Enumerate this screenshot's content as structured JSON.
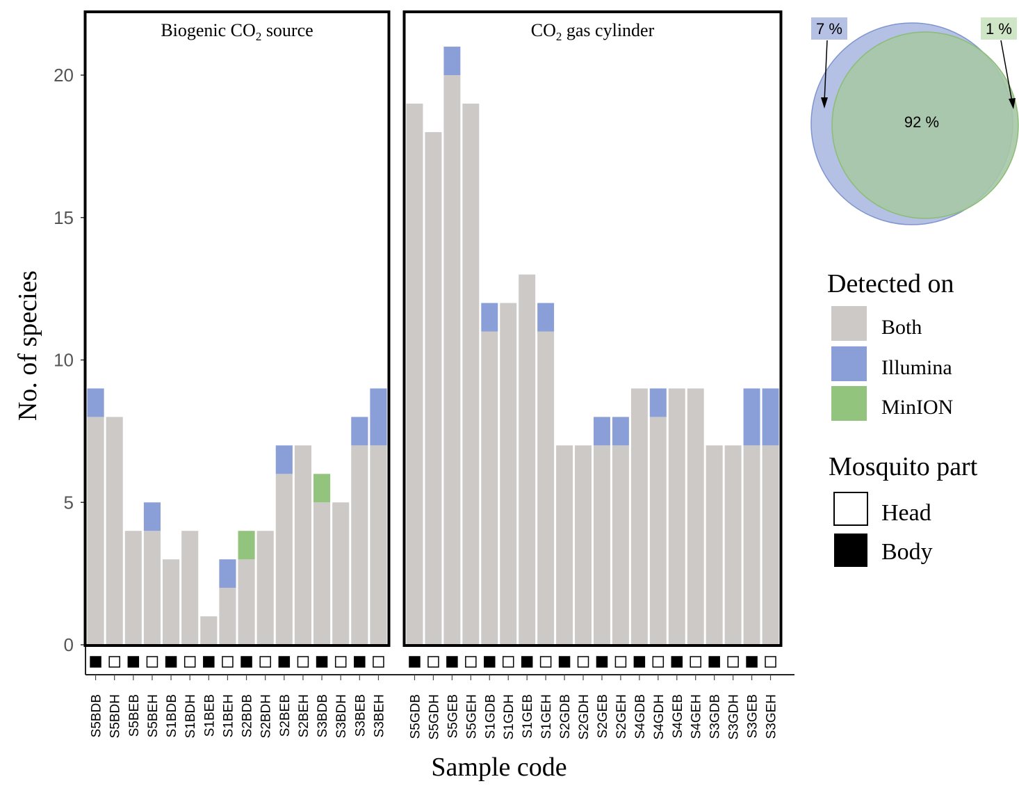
{
  "chart_data": {
    "type": "bar",
    "stacked": true,
    "ylabel": "No. of species",
    "xlabel": "Sample code",
    "ylim": [
      0,
      22
    ],
    "yticks": [
      0,
      5,
      10,
      15,
      20
    ],
    "colors": {
      "Both": "#cdc9c7",
      "Illumina": "#8a9fd8",
      "MinION": "#93c47d"
    },
    "panels": [
      {
        "title": "Biogenic CO",
        "title_sub": "2",
        "title_tail": " source",
        "categories": [
          "S5BDB",
          "S5BDH",
          "S5BEB",
          "S5BEH",
          "S1BDB",
          "S1BDH",
          "S1BEB",
          "S1BEH",
          "S2BDB",
          "S2BDH",
          "S2BEB",
          "S2BEH",
          "S3BDB",
          "S3BDH",
          "S3BEB",
          "S3BEH"
        ],
        "series": [
          {
            "name": "Both",
            "values": [
              8,
              8,
              4,
              4,
              3,
              4,
              1,
              2,
              3,
              4,
              6,
              7,
              5,
              5,
              7,
              7
            ]
          },
          {
            "name": "Illumina",
            "values": [
              1,
              0,
              0,
              1,
              0,
              0,
              0,
              1,
              0,
              0,
              1,
              0,
              0,
              0,
              1,
              2
            ]
          },
          {
            "name": "MinION",
            "values": [
              0,
              0,
              0,
              0,
              0,
              0,
              0,
              0,
              1,
              0,
              0,
              0,
              1,
              0,
              0,
              0
            ]
          }
        ],
        "part": [
          "Body",
          "Head",
          "Body",
          "Head",
          "Body",
          "Head",
          "Body",
          "Head",
          "Body",
          "Head",
          "Body",
          "Head",
          "Body",
          "Head",
          "Body",
          "Head"
        ]
      },
      {
        "title": "CO",
        "title_sub": "2",
        "title_tail": " gas cylinder",
        "categories": [
          "S5GDB",
          "S5GDH",
          "S5GEB",
          "S5GEH",
          "S1GDB",
          "S1GDH",
          "S1GEB",
          "S1GEH",
          "S2GDB",
          "S2GDH",
          "S2GEB",
          "S2GEH",
          "S4GDB",
          "S4GDH",
          "S4GEB",
          "S4GEH",
          "S3GDB",
          "S3GDH",
          "S3GEB",
          "S3GEH"
        ],
        "series": [
          {
            "name": "Both",
            "values": [
              19,
              18,
              20,
              19,
              11,
              12,
              13,
              11,
              7,
              7,
              7,
              7,
              9,
              8,
              9,
              9,
              7,
              7,
              7,
              7
            ]
          },
          {
            "name": "Illumina",
            "values": [
              0,
              0,
              1,
              0,
              1,
              0,
              0,
              1,
              0,
              0,
              1,
              1,
              0,
              1,
              0,
              0,
              0,
              0,
              2,
              2
            ]
          },
          {
            "name": "MinION",
            "values": [
              0,
              0,
              0,
              0,
              0,
              0,
              0,
              0,
              0,
              0,
              0,
              0,
              0,
              0,
              0,
              0,
              0,
              0,
              0,
              0
            ]
          }
        ],
        "part": [
          "Body",
          "Head",
          "Body",
          "Head",
          "Body",
          "Head",
          "Body",
          "Head",
          "Body",
          "Head",
          "Body",
          "Head",
          "Body",
          "Head",
          "Body",
          "Head",
          "Body",
          "Head",
          "Body",
          "Head"
        ]
      }
    ],
    "venn": {
      "illumina_only": "7 %",
      "overlap": "92 %",
      "minion_only": "1 %"
    },
    "legend": {
      "detected_title": "Detected on",
      "detected_items": [
        "Both",
        "Illumina",
        "MinION"
      ],
      "part_title": "Mosquito part",
      "part_items": [
        "Head",
        "Body"
      ]
    }
  }
}
